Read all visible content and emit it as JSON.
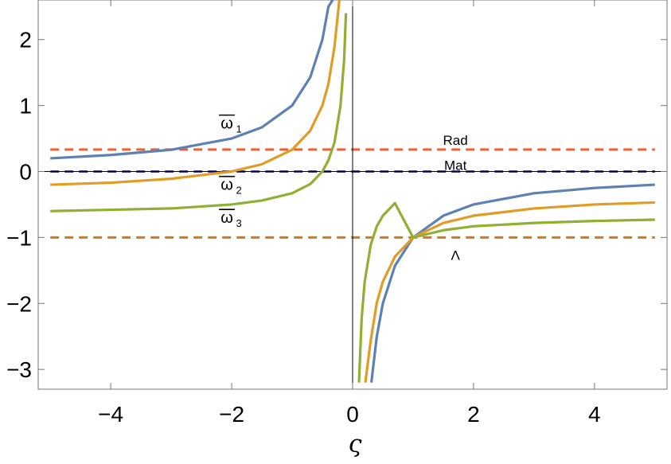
{
  "chart_data": {
    "type": "line",
    "xlabel": "ς",
    "ylabel": "",
    "xlim": [
      -5.2,
      5.2
    ],
    "ylim": [
      -3.3,
      2.6
    ],
    "xticks": [
      -4,
      -2,
      0,
      2,
      4
    ],
    "xtick_labels": [
      "−4",
      "−2",
      "0",
      "2",
      "4"
    ],
    "yticks": [
      2,
      1,
      0,
      -1,
      -2,
      -3
    ],
    "ytick_labels": [
      "2",
      "1",
      "0",
      "−1",
      "−2",
      "−3"
    ],
    "grid": false,
    "series": [
      {
        "label_main": "ω",
        "label_sub": "1",
        "color": "#5e81b5",
        "branches": [
          {
            "x": [
              -5,
              -4,
              -3,
              -2,
              -1.5,
              -1,
              -0.7,
              -0.5,
              -0.4,
              -0.33
            ],
            "y": [
              0.2,
              0.25,
              0.33,
              0.5,
              0.67,
              1.0,
              1.43,
              2.0,
              2.5,
              3.0
            ]
          },
          {
            "x": [
              0.31,
              0.4,
              0.5,
              0.7,
              1,
              1.5,
              2,
              3,
              4,
              5
            ],
            "y": [
              -3.2,
              -2.5,
              -2.0,
              -1.43,
              -1.0,
              -0.67,
              -0.5,
              -0.33,
              -0.25,
              -0.2
            ]
          }
        ]
      },
      {
        "label_main": "ω",
        "label_sub": "2",
        "color": "#e19c24",
        "branches": [
          {
            "x": [
              -5,
              -4,
              -3,
              -2,
              -1.5,
              -1,
              -0.7,
              -0.5,
              -0.4,
              -0.3,
              -0.22
            ],
            "y": [
              -0.2,
              -0.17,
              -0.11,
              0.0,
              0.11,
              0.33,
              0.62,
              1.0,
              1.33,
              1.89,
              2.6
            ]
          },
          {
            "x": [
              0.21,
              0.3,
              0.4,
              0.5,
              0.7,
              1,
              1.5,
              2,
              3,
              4,
              5
            ],
            "y": [
              -3.2,
              -2.56,
              -1.99,
              -1.67,
              -1.29,
              -1.0,
              -0.78,
              -0.67,
              -0.56,
              -0.5,
              -0.47
            ]
          }
        ]
      },
      {
        "label_main": "ω",
        "label_sub": "3",
        "color": "#8fb032",
        "branches": [
          {
            "x": [
              -5,
              -4,
              -3,
              -2,
              -1.5,
              -1,
              -0.7,
              -0.5,
              -0.4,
              -0.3,
              -0.2,
              -0.14,
              -0.11
            ],
            "y": [
              -0.6,
              -0.58,
              -0.56,
              -0.5,
              -0.44,
              -0.33,
              -0.19,
              0.0,
              0.17,
              0.44,
              1.0,
              1.7,
              2.4
            ]
          },
          {
            "x": [
              0.105,
              0.15,
              0.2,
              0.3,
              0.4,
              0.5,
              0.7,
              1,
              1.5,
              2,
              3,
              4,
              5
            ],
            "y": [
              -3.2,
              -2.22,
              -1.67,
              -1.11,
              -0.83,
              -0.67,
              -0.48,
              -1.0,
              -0.89,
              -0.83,
              -0.78,
              -0.75,
              -0.73
            ]
          }
        ]
      }
    ],
    "reference_lines": [
      {
        "label": "Rad",
        "y": 0.3333,
        "color": "#eb6235"
      },
      {
        "label": "Mat",
        "y": 0,
        "color": "#4a4285"
      },
      {
        "label": "Λ",
        "y": -1,
        "color": "#d47a1e"
      }
    ]
  }
}
